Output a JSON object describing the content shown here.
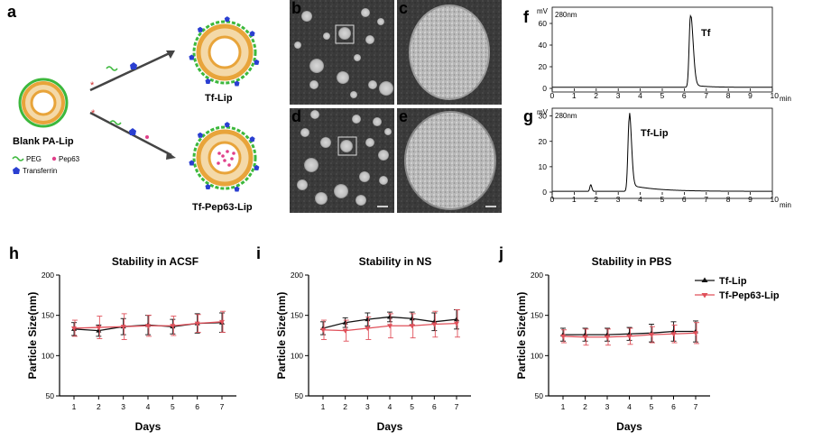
{
  "panel_labels": [
    "a",
    "b",
    "c",
    "d",
    "e",
    "f",
    "g",
    "h",
    "i",
    "j"
  ],
  "schematic": {
    "blank_label": "Blank PA-Lip",
    "tf_lip_label": "Tf-Lip",
    "tf_pep_label": "Tf-Pep63-Lip",
    "legend_peg": "PEG",
    "legend_pep": "Pep63",
    "legend_tf": "Transferrin",
    "colors": {
      "peg": "#3cb83c",
      "pep": "#e0408a",
      "transferrin": "#2a3fd1",
      "shell": "#e8a43a",
      "arrow": "#444444"
    }
  },
  "hplc": {
    "f": {
      "unit": "mV",
      "wavelength": "280nm",
      "peak_label": "Tf",
      "x_unit": "min",
      "x_ticks": [
        "0",
        "1",
        "2",
        "3",
        "4",
        "5",
        "6",
        "7",
        "8",
        "9",
        "10"
      ],
      "y_ticks": [
        "0",
        "20",
        "40",
        "60"
      ]
    },
    "g": {
      "unit": "mV",
      "wavelength": "280nm",
      "peak_label": "Tf-Lip",
      "x_unit": "min",
      "x_ticks": [
        "0",
        "1",
        "2",
        "3",
        "4",
        "5",
        "6",
        "7",
        "8",
        "9",
        "10"
      ],
      "y_ticks": [
        "0",
        "10",
        "20",
        "30"
      ]
    }
  },
  "legend": {
    "series": [
      "Tf-Lip",
      "Tf-Pep63-Lip"
    ],
    "colors": [
      "#111111",
      "#e0505a"
    ]
  },
  "chart_data": [
    {
      "type": "line",
      "title": "Stability in ACSF",
      "xlabel": "Days",
      "ylabel": "Particle Size(nm)",
      "x": [
        1,
        2,
        3,
        4,
        5,
        6,
        7
      ],
      "ylim": [
        50,
        200
      ],
      "y_ticks": [
        50,
        100,
        150,
        200
      ],
      "series": [
        {
          "name": "Tf-Lip",
          "values": [
            133,
            131,
            136,
            138,
            136,
            140,
            141
          ],
          "errors": [
            8,
            7,
            10,
            12,
            9,
            12,
            12
          ]
        },
        {
          "name": "Tf-Pep63-Lip",
          "values": [
            134,
            135,
            136,
            137,
            137,
            140,
            142
          ],
          "errors": [
            10,
            14,
            16,
            13,
            12,
            11,
            13
          ]
        }
      ]
    },
    {
      "type": "line",
      "title": "Stability in NS",
      "xlabel": "Days",
      "ylabel": "Particle Size(nm)",
      "x": [
        1,
        2,
        3,
        4,
        5,
        6,
        7
      ],
      "ylim": [
        50,
        200
      ],
      "y_ticks": [
        50,
        100,
        150,
        200
      ],
      "series": [
        {
          "name": "Tf-Lip",
          "values": [
            134,
            141,
            145,
            148,
            146,
            142,
            145
          ],
          "errors": [
            8,
            6,
            8,
            6,
            8,
            11,
            12
          ]
        },
        {
          "name": "Tf-Pep63-Lip",
          "values": [
            132,
            131,
            134,
            137,
            137,
            139,
            140
          ],
          "errors": [
            12,
            13,
            14,
            15,
            15,
            16,
            17
          ]
        }
      ]
    },
    {
      "type": "line",
      "title": "Stability in PBS",
      "xlabel": "Days",
      "ylabel": "Particle Size(nm)",
      "x": [
        1,
        2,
        3,
        4,
        5,
        6,
        7
      ],
      "ylim": [
        50,
        200
      ],
      "y_ticks": [
        50,
        100,
        150,
        200
      ],
      "series": [
        {
          "name": "Tf-Lip",
          "values": [
            126,
            126,
            126,
            127,
            128,
            130,
            130
          ],
          "errors": [
            8,
            8,
            8,
            8,
            11,
            12,
            13
          ]
        },
        {
          "name": "Tf-Pep63-Lip",
          "values": [
            124,
            123,
            123,
            124,
            126,
            127,
            128
          ],
          "errors": [
            8,
            10,
            10,
            10,
            10,
            11,
            13
          ]
        }
      ]
    }
  ]
}
